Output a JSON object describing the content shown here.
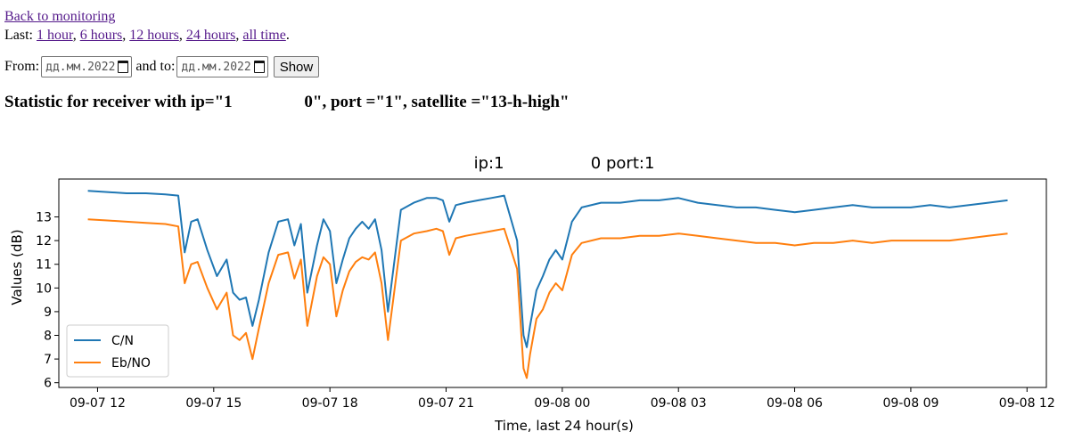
{
  "nav": {
    "back_link": "Back to monitoring",
    "last_label": "Last: ",
    "ranges": [
      {
        "label": "1 hour"
      },
      {
        "label": "6 hours"
      },
      {
        "label": "12 hours"
      },
      {
        "label": "24 hours"
      },
      {
        "label": "all time"
      }
    ],
    "sep": ", ",
    "end": "."
  },
  "form": {
    "from_label": "From:",
    "to_label": "and to:",
    "from_placeholder": "дд.мм.2022",
    "to_placeholder": "дд.мм.2022",
    "show_label": "Show"
  },
  "heading": "Statistic for receiver with ip=\"1                 0\", port =\"1\", satellite =\"13-h-high\"",
  "chart_data": {
    "type": "line",
    "title": "ip:1                 0 port:1",
    "xlabel": "Time, last 24 hour(s)",
    "ylabel": "Values (dB)",
    "x_ticks": [
      "09-07 12",
      "09-07 15",
      "09-07 18",
      "09-07 21",
      "09-08 00",
      "09-08 03",
      "09-08 06",
      "09-08 09",
      "09-08 12"
    ],
    "y_ticks": [
      6,
      7,
      8,
      9,
      10,
      11,
      12,
      13
    ],
    "xlim": [
      "09-07 11:00",
      "09-08 12:30"
    ],
    "ylim": [
      5.8,
      14.6
    ],
    "legend_position": "lower-left",
    "x": [
      "09-07 11:45",
      "09-07 12:15",
      "09-07 12:45",
      "09-07 13:15",
      "09-07 13:45",
      "09-07 14:05",
      "09-07 14:15",
      "09-07 14:25",
      "09-07 14:35",
      "09-07 14:50",
      "09-07 15:05",
      "09-07 15:20",
      "09-07 15:30",
      "09-07 15:40",
      "09-07 15:50",
      "09-07 16:00",
      "09-07 16:10",
      "09-07 16:25",
      "09-07 16:40",
      "09-07 16:55",
      "09-07 17:05",
      "09-07 17:15",
      "09-07 17:25",
      "09-07 17:40",
      "09-07 17:50",
      "09-07 18:00",
      "09-07 18:10",
      "09-07 18:20",
      "09-07 18:30",
      "09-07 18:40",
      "09-07 18:50",
      "09-07 19:00",
      "09-07 19:10",
      "09-07 19:20",
      "09-07 19:30",
      "09-07 19:50",
      "09-07 20:10",
      "09-07 20:30",
      "09-07 20:45",
      "09-07 20:55",
      "09-07 21:05",
      "09-07 21:15",
      "09-07 21:30",
      "09-07 21:50",
      "09-07 22:10",
      "09-07 22:30",
      "09-07 22:50",
      "09-07 23:00",
      "09-07 23:05",
      "09-07 23:10",
      "09-07 23:20",
      "09-07 23:30",
      "09-07 23:40",
      "09-07 23:50",
      "09-08 00:00",
      "09-08 00:15",
      "09-08 00:30",
      "09-08 01:00",
      "09-08 01:30",
      "09-08 02:00",
      "09-08 02:30",
      "09-08 03:00",
      "09-08 03:30",
      "09-08 04:00",
      "09-08 04:30",
      "09-08 05:00",
      "09-08 05:30",
      "09-08 06:00",
      "09-08 06:30",
      "09-08 07:00",
      "09-08 07:30",
      "09-08 08:00",
      "09-08 08:30",
      "09-08 09:00",
      "09-08 09:30",
      "09-08 10:00",
      "09-08 10:30",
      "09-08 11:00",
      "09-08 11:30"
    ],
    "series": [
      {
        "name": "C/N",
        "color": "#1f77b4",
        "values": [
          14.1,
          14.05,
          14.0,
          14.0,
          13.95,
          13.9,
          11.5,
          12.8,
          12.9,
          11.6,
          10.5,
          11.2,
          9.8,
          9.5,
          9.6,
          8.4,
          9.5,
          11.5,
          12.8,
          12.9,
          11.8,
          12.7,
          9.8,
          11.8,
          12.9,
          12.4,
          10.2,
          11.2,
          12.1,
          12.5,
          12.8,
          12.5,
          12.9,
          11.6,
          9.0,
          13.3,
          13.6,
          13.8,
          13.8,
          13.7,
          12.8,
          13.5,
          13.6,
          13.7,
          13.8,
          13.9,
          12.0,
          8.0,
          7.5,
          8.4,
          9.9,
          10.5,
          11.2,
          11.6,
          11.2,
          12.8,
          13.4,
          13.6,
          13.6,
          13.7,
          13.7,
          13.8,
          13.6,
          13.5,
          13.4,
          13.4,
          13.3,
          13.2,
          13.3,
          13.4,
          13.5,
          13.4,
          13.4,
          13.4,
          13.5,
          13.4,
          13.5,
          13.6,
          13.7
        ]
      },
      {
        "name": "Eb/NO",
        "color": "#ff7f0e",
        "values": [
          12.9,
          12.85,
          12.8,
          12.75,
          12.7,
          12.6,
          10.2,
          11.0,
          11.1,
          10.0,
          9.1,
          9.8,
          8.0,
          7.8,
          8.1,
          7.0,
          8.3,
          10.2,
          11.4,
          11.5,
          10.4,
          11.2,
          8.4,
          10.5,
          11.3,
          11.0,
          8.8,
          9.9,
          10.7,
          11.1,
          11.3,
          11.2,
          11.5,
          10.2,
          7.8,
          12.0,
          12.3,
          12.4,
          12.5,
          12.4,
          11.4,
          12.1,
          12.2,
          12.3,
          12.4,
          12.5,
          10.8,
          6.6,
          6.2,
          7.2,
          8.7,
          9.1,
          9.8,
          10.2,
          9.9,
          11.4,
          11.9,
          12.1,
          12.1,
          12.2,
          12.2,
          12.3,
          12.2,
          12.1,
          12.0,
          11.9,
          11.9,
          11.8,
          11.9,
          11.9,
          12.0,
          11.9,
          12.0,
          12.0,
          12.0,
          12.0,
          12.1,
          12.2,
          12.3
        ]
      }
    ]
  }
}
